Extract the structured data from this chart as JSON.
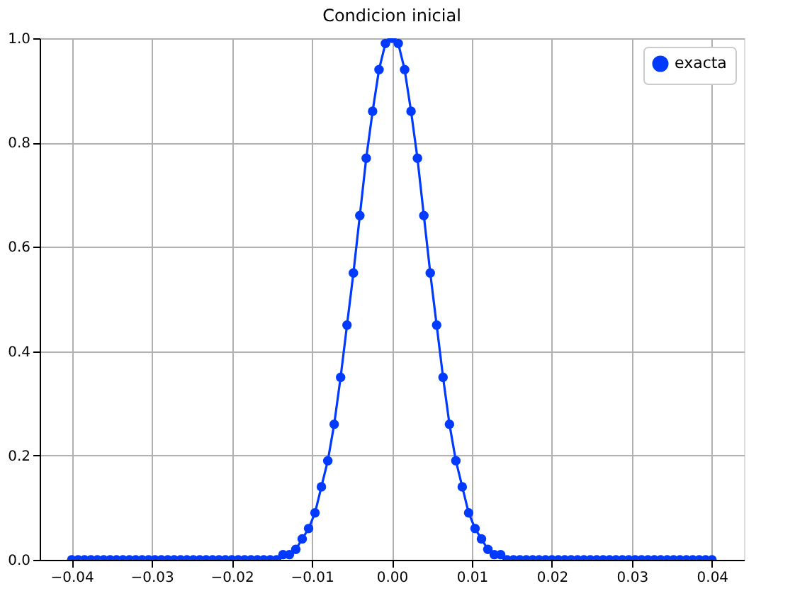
{
  "chart_data": {
    "type": "line",
    "title": "Condicion inicial",
    "x": [
      -0.04,
      -0.0392,
      -0.0384,
      -0.0376,
      -0.0368,
      -0.036,
      -0.0352,
      -0.0344,
      -0.0336,
      -0.0328,
      -0.032,
      -0.0312,
      -0.0304,
      -0.0296,
      -0.0288,
      -0.028,
      -0.0272,
      -0.0264,
      -0.0256,
      -0.0248,
      -0.024,
      -0.0232,
      -0.0224,
      -0.0216,
      -0.0208,
      -0.02,
      -0.0192,
      -0.0184,
      -0.0176,
      -0.0168,
      -0.016,
      -0.0152,
      -0.0144,
      -0.0136,
      -0.0128,
      -0.012,
      -0.0112,
      -0.0104,
      -0.0096,
      -0.0088,
      -0.008,
      -0.0072,
      -0.0064,
      -0.0056,
      -0.0048,
      -0.004,
      -0.0032,
      -0.0024,
      -0.0016,
      -0.0008,
      0,
      0.0008,
      0.0016,
      0.0024,
      0.0032,
      0.004,
      0.0048,
      0.0056,
      0.0064,
      0.0072,
      0.008,
      0.0088,
      0.0096,
      0.0104,
      0.0112,
      0.012,
      0.0128,
      0.0136,
      0.0144,
      0.0152,
      0.016,
      0.0168,
      0.0176,
      0.0184,
      0.0192,
      0.02,
      0.0208,
      0.0216,
      0.0224,
      0.0232,
      0.024,
      0.0248,
      0.0256,
      0.0264,
      0.0272,
      0.028,
      0.0288,
      0.0296,
      0.0304,
      0.0312,
      0.032,
      0.0328,
      0.0336,
      0.0344,
      0.0352,
      0.036,
      0.0368,
      0.0376,
      0.0384,
      0.0392,
      0.04
    ],
    "series": [
      {
        "name": "exacta",
        "color": "#0039ff",
        "values": [
          0,
          0,
          0,
          0,
          0,
          0,
          0,
          0,
          0,
          0,
          0,
          0,
          0,
          0,
          0,
          0,
          0,
          0,
          0,
          0,
          0,
          0,
          0,
          0,
          0,
          0,
          0,
          0,
          0,
          0,
          0,
          0,
          0,
          0.01,
          0.01,
          0.02,
          0.04,
          0.06,
          0.09,
          0.14,
          0.19,
          0.26,
          0.35,
          0.45,
          0.55,
          0.66,
          0.77,
          0.86,
          0.94,
          0.99,
          1.0,
          0.99,
          0.94,
          0.86,
          0.77,
          0.66,
          0.55,
          0.45,
          0.35,
          0.26,
          0.19,
          0.14,
          0.09,
          0.06,
          0.04,
          0.02,
          0.01,
          0.01,
          0,
          0,
          0,
          0,
          0,
          0,
          0,
          0,
          0,
          0,
          0,
          0,
          0,
          0,
          0,
          0,
          0,
          0,
          0,
          0,
          0,
          0,
          0,
          0,
          0,
          0,
          0,
          0,
          0,
          0,
          0,
          0,
          0
        ]
      }
    ],
    "xlim": [
      -0.044,
      0.044
    ],
    "xticks": [
      {
        "value": -0.04,
        "label": "−0.04"
      },
      {
        "value": -0.03,
        "label": "−0.03"
      },
      {
        "value": -0.02,
        "label": "−0.02"
      },
      {
        "value": -0.01,
        "label": "−0.01"
      },
      {
        "value": 0,
        "label": "0.00"
      },
      {
        "value": 0.01,
        "label": "0.01"
      },
      {
        "value": 0.02,
        "label": "0.02"
      },
      {
        "value": 0.03,
        "label": "0.03"
      },
      {
        "value": 0.04,
        "label": "0.04"
      }
    ],
    "ylim": [
      0,
      1
    ],
    "yticks": [
      {
        "value": 0,
        "label": "0.0"
      },
      {
        "value": 0.2,
        "label": "0.2"
      },
      {
        "value": 0.4,
        "label": "0.4"
      },
      {
        "value": 0.6,
        "label": "0.6"
      },
      {
        "value": 0.8,
        "label": "0.8"
      },
      {
        "value": 1,
        "label": "1.0"
      }
    ],
    "grid": true,
    "legend": "top right",
    "marker": "circle",
    "line_style": "solid"
  }
}
